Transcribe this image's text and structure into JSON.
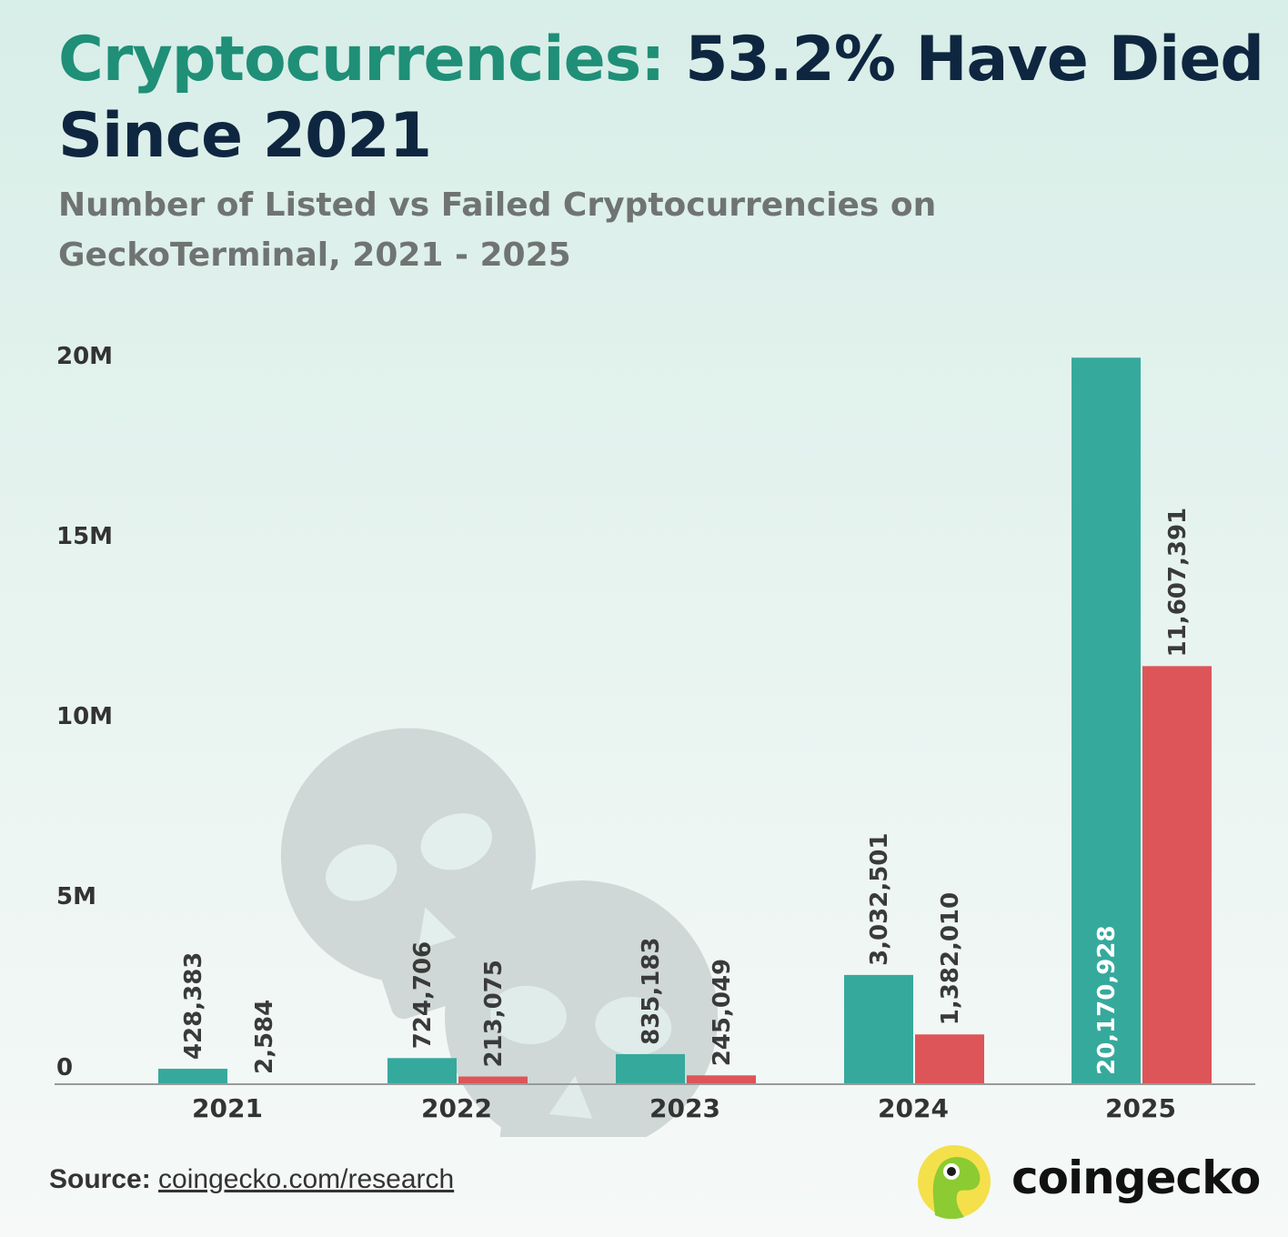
{
  "header": {
    "title_accent": "Cryptocurrencies:",
    "title_rest": " 53.2% Have Died Since 2021",
    "subtitle": "Number of Listed vs Failed Cryptocurrencies on GeckoTerminal, 2021 - 2025"
  },
  "colors": {
    "listed": "#36a99d",
    "failed": "#dd5558",
    "title_accent": "#1f8f77",
    "title": "#0f2640",
    "watermark": "#cfd8d6"
  },
  "chart_data": {
    "type": "bar",
    "categories": [
      "2021",
      "2022",
      "2023",
      "2024",
      "2025"
    ],
    "series": [
      {
        "values": [
          428383,
          724706,
          835183,
          3032501,
          20170928
        ],
        "labels": [
          "428,383",
          "724,706",
          "835,183",
          "3,032,501",
          "20,170,928"
        ]
      },
      {
        "values": [
          2584,
          213075,
          245049,
          1382010,
          11607391
        ],
        "labels": [
          "2,584",
          "213,075",
          "245,049",
          "1,382,010",
          "11,607,391"
        ]
      }
    ],
    "ylim": [
      0,
      20000000
    ],
    "yticks": [
      0,
      5000000,
      10000000,
      15000000,
      20000000
    ],
    "ytick_labels": [
      "0",
      "5M",
      "10M",
      "15M",
      "20M"
    ],
    "grid": false,
    "legend": "none"
  },
  "footer": {
    "source_label": "Source:",
    "source_link": "coingecko.com/research",
    "logo_icon": "coingecko-gecko-icon",
    "logo_text": "coingecko"
  }
}
